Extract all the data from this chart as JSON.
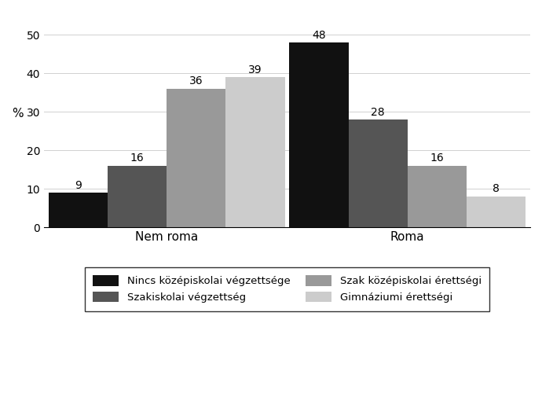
{
  "groups": [
    "Nem roma",
    "Roma"
  ],
  "categories": [
    "Nincs középiskolai végzettsége",
    "Szakiskolai végzettség",
    "Szak középiskolai érettségi",
    "Gimnáziumi érettségi"
  ],
  "values": {
    "Nem roma": [
      9,
      16,
      36,
      39
    ],
    "Roma": [
      48,
      28,
      16,
      8
    ]
  },
  "colors": [
    "#111111",
    "#555555",
    "#999999",
    "#cccccc"
  ],
  "ylabel": "%",
  "ylim": [
    0,
    56
  ],
  "yticks": [
    0,
    10,
    20,
    30,
    40,
    50
  ],
  "legend_labels": [
    "Nincs középiskolai végzettsége",
    "Szakiskolai végzettség",
    "Szak középiskolai érettségi",
    "Gimnáziumi érettségi"
  ],
  "figsize": [
    6.9,
    5.19
  ],
  "dpi": 100,
  "label_fontsize": 10,
  "axis_fontsize": 11,
  "legend_fontsize": 9.5,
  "tick_fontsize": 10,
  "bar_width": 0.13,
  "group_centers": [
    0.27,
    0.8
  ],
  "xlim": [
    0.0,
    1.07
  ]
}
